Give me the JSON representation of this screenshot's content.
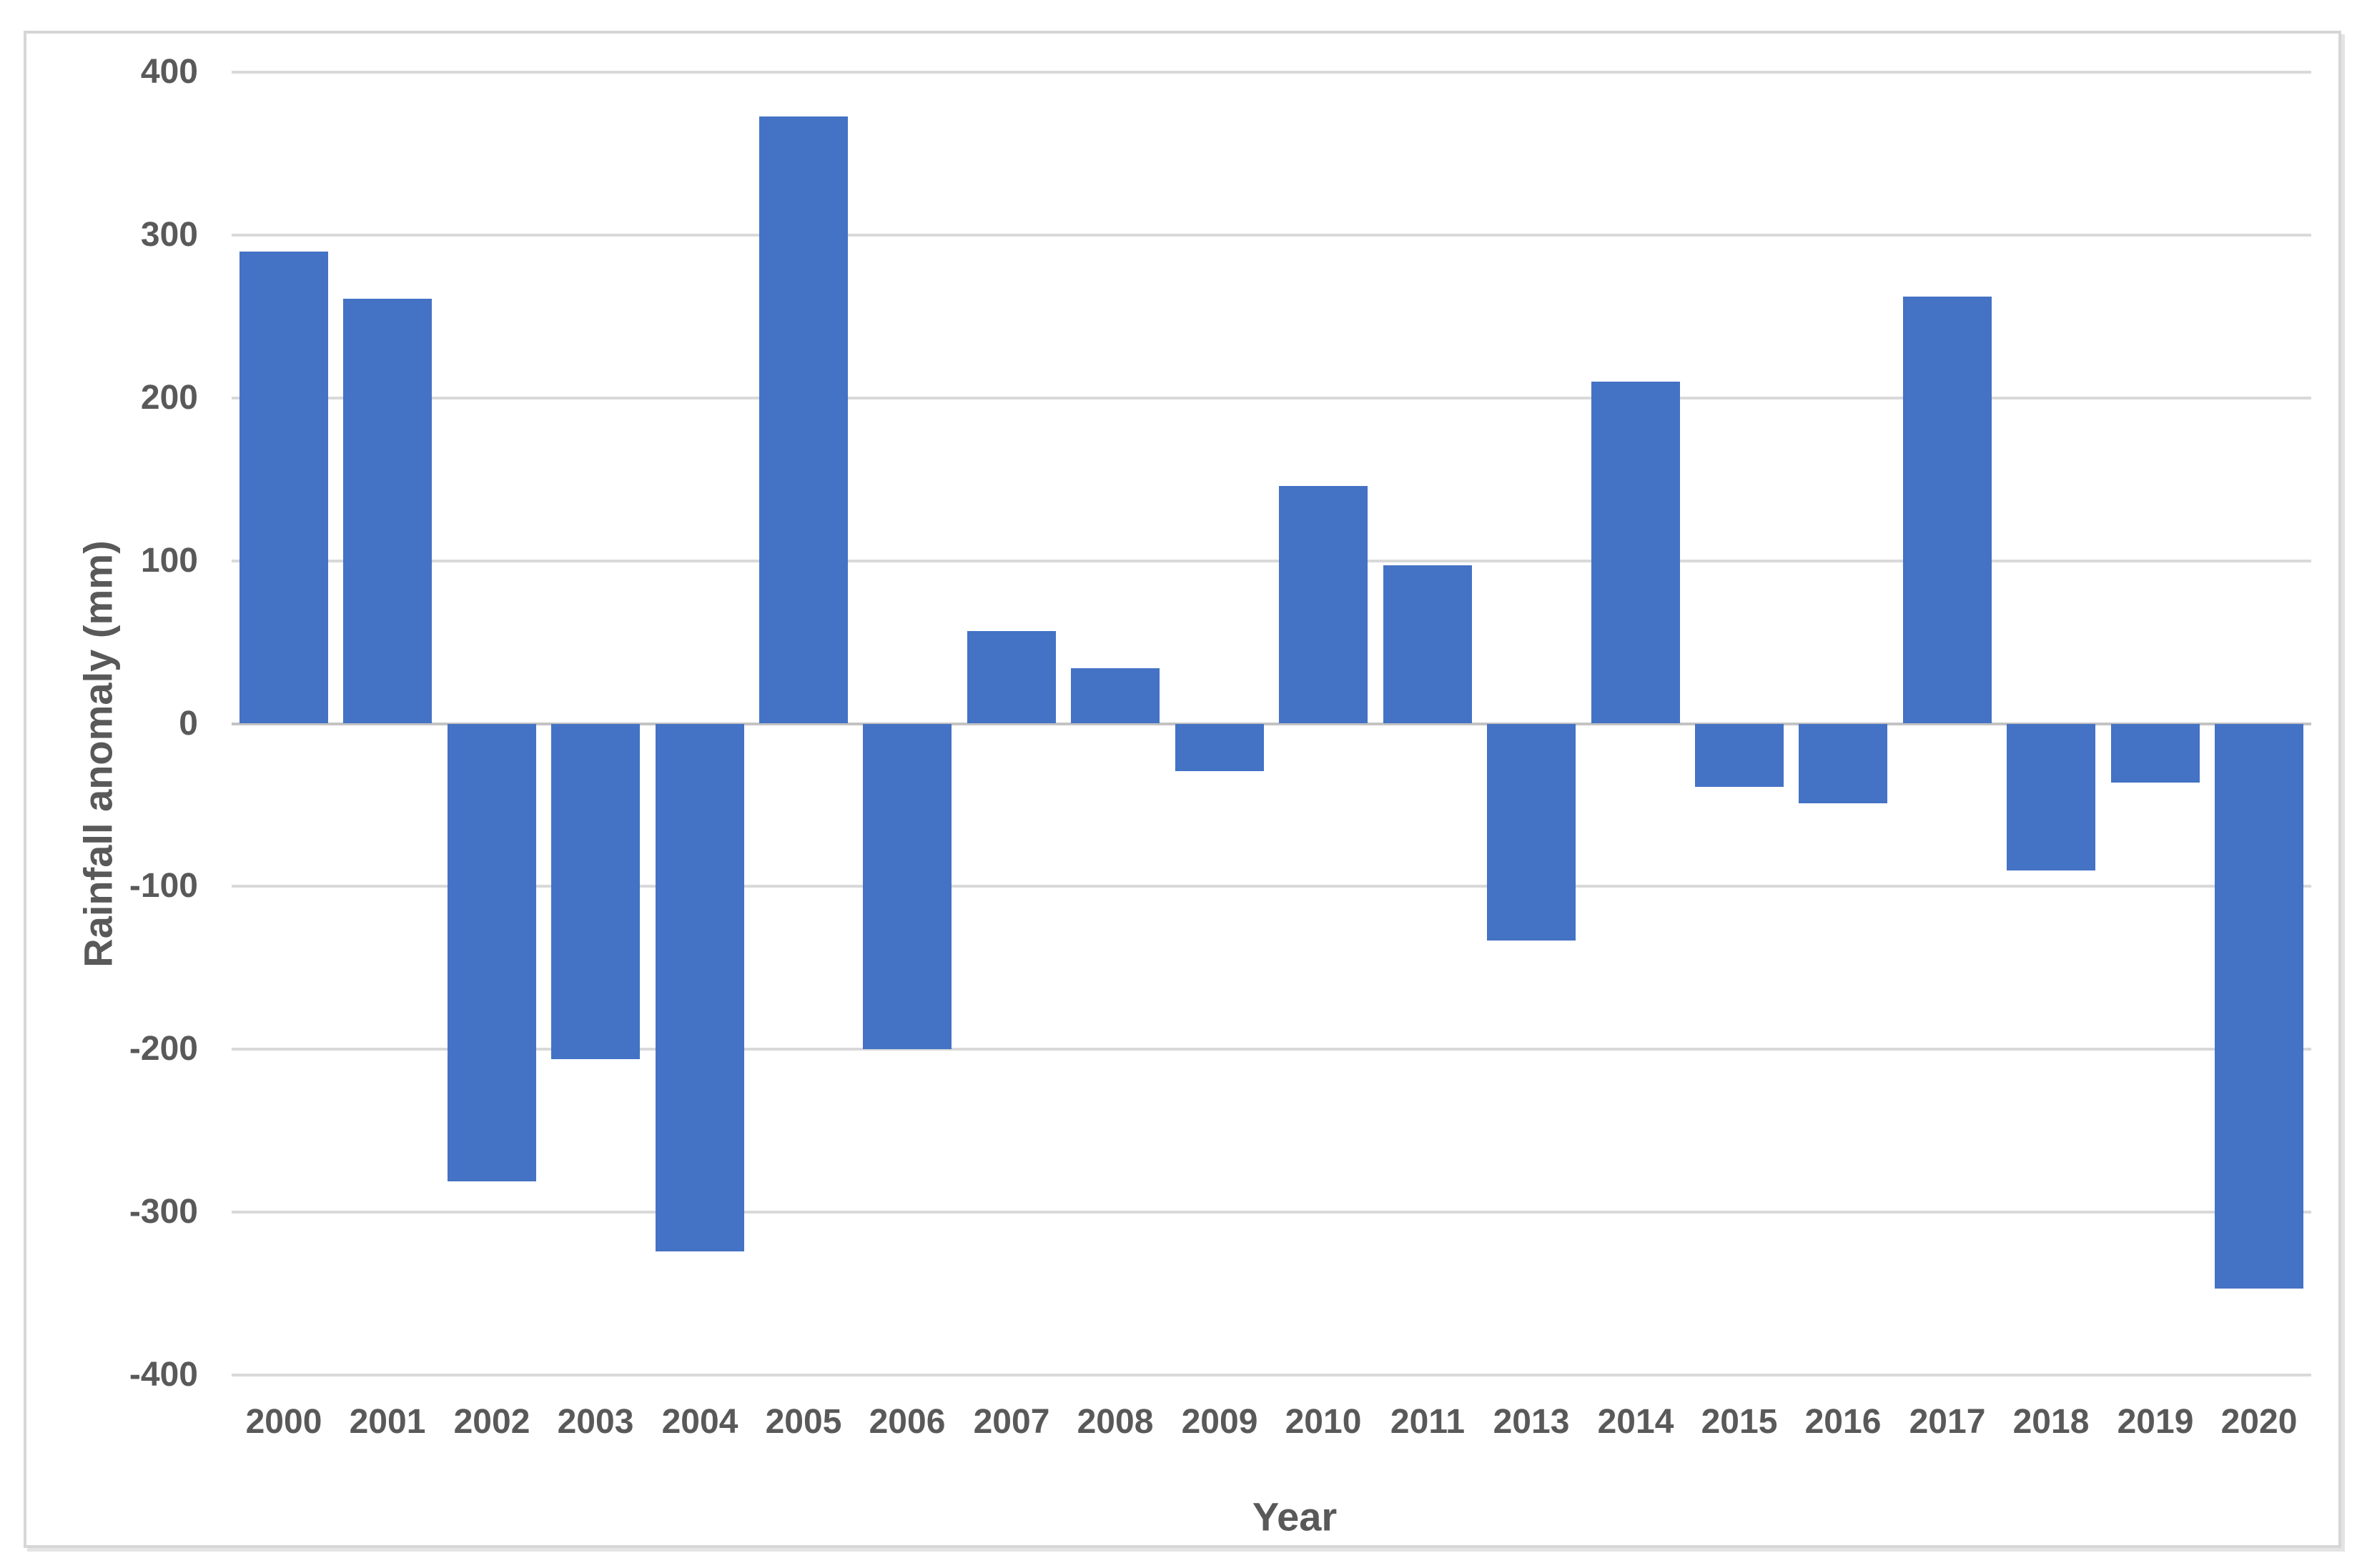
{
  "chart_data": {
    "type": "bar",
    "categories": [
      "2000",
      "2001",
      "2002",
      "2003",
      "2004",
      "2005",
      "2006",
      "2007",
      "2008",
      "2009",
      "2010",
      "2011",
      "2013",
      "2014",
      "2015",
      "2016",
      "2017",
      "2018",
      "2019",
      "2020"
    ],
    "values": [
      290,
      261,
      -281,
      -206,
      -324,
      373,
      -200,
      57,
      34,
      -29,
      146,
      97,
      -133,
      210,
      -39,
      -49,
      262,
      -90,
      -36,
      -347
    ],
    "title": "",
    "xlabel": "Year",
    "ylabel": "Rainfall anomaly (mm)",
    "ylim": [
      -400,
      400
    ],
    "ytick_step": 100,
    "ytick_labels": [
      "400",
      "300",
      "200",
      "100",
      "0",
      "-100",
      "-200",
      "-300",
      "-400"
    ],
    "grid": true,
    "legend_position": "none",
    "bar_color": "#4472C4",
    "gridline_color": "#D9D9D9",
    "zero_line_color": "#C3C3C3",
    "label_color": "#595959",
    "background_color": "#FFFFFF",
    "frame_border_color": "#D6D6D6"
  }
}
